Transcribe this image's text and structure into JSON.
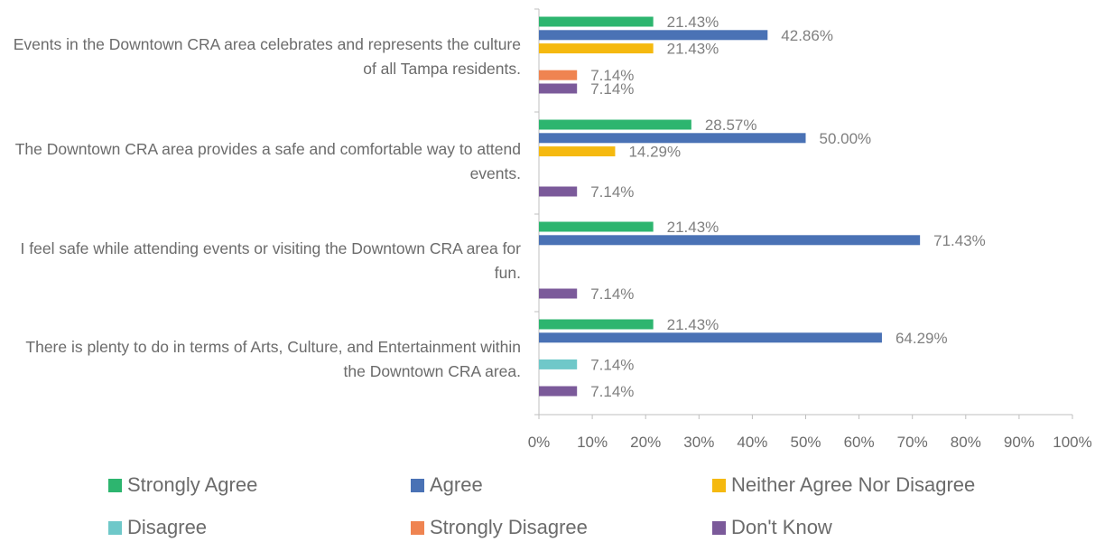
{
  "chart_data": {
    "type": "bar",
    "orientation": "horizontal",
    "categories": [
      "Events in the Downtown CRA area celebrates and represents the culture of all Tampa residents.",
      "The Downtown CRA area provides a safe and comfortable way to attend events.",
      "I feel safe while attending events or visiting the Downtown CRA area for fun.",
      "There is plenty to do in terms of Arts, Culture, and Entertainment within the Downtown CRA area."
    ],
    "series": [
      {
        "name": "Strongly Agree",
        "color": "#2db56f",
        "values": [
          21.43,
          28.57,
          21.43,
          21.43
        ]
      },
      {
        "name": "Agree",
        "color": "#4a72b5",
        "values": [
          42.86,
          50.0,
          71.43,
          64.29
        ]
      },
      {
        "name": "Neither Agree Nor Disagree",
        "color": "#f5b90f",
        "values": [
          21.43,
          14.29,
          null,
          null
        ]
      },
      {
        "name": "Disagree",
        "color": "#6fc8c9",
        "values": [
          null,
          null,
          null,
          7.14
        ]
      },
      {
        "name": "Strongly Disagree",
        "color": "#ef8451",
        "values": [
          7.14,
          null,
          null,
          null
        ]
      },
      {
        "name": "Don't Know",
        "color": "#7b5a9a",
        "values": [
          7.14,
          7.14,
          7.14,
          7.14
        ]
      }
    ],
    "xlim": [
      0,
      100
    ],
    "x_ticks": [
      "0%",
      "10%",
      "20%",
      "30%",
      "40%",
      "50%",
      "60%",
      "70%",
      "80%",
      "90%",
      "100%"
    ],
    "value_format": "percent_2dp",
    "grid": false,
    "legend_position": "bottom"
  }
}
